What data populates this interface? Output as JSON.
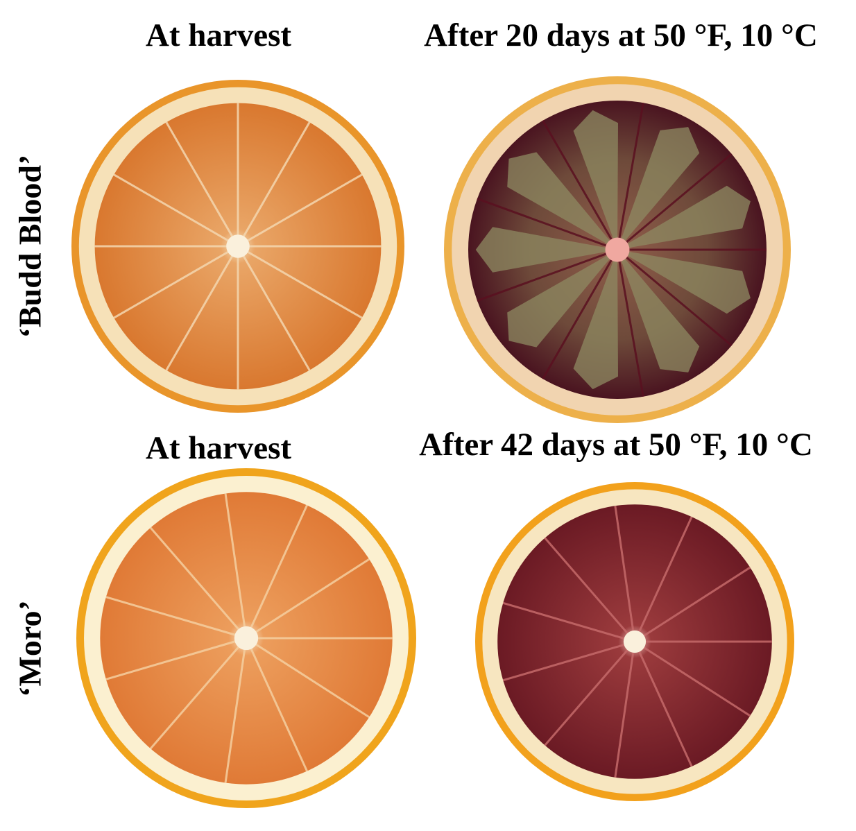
{
  "rows": [
    {
      "label": "‘Budd Blood’",
      "panels": [
        {
          "caption": "At harvest"
        },
        {
          "caption": "After 20 days at 50 °F, 10 °C"
        }
      ]
    },
    {
      "label": "‘Moro’",
      "panels": [
        {
          "caption": "At harvest"
        },
        {
          "caption": "After 42 days at 50 °F, 10 °C"
        }
      ]
    }
  ]
}
